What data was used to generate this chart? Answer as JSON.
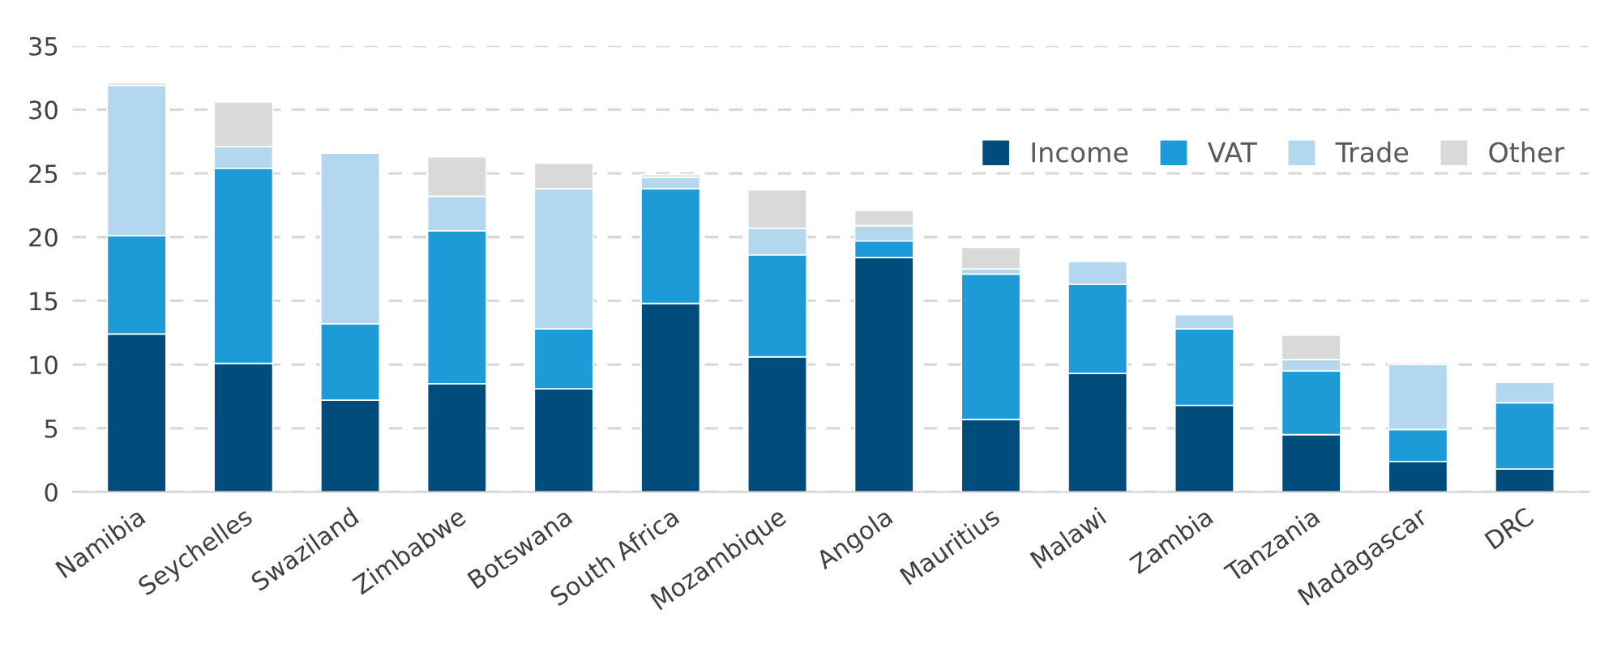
{
  "chart_data": {
    "type": "bar",
    "stacked": true,
    "categories": [
      "Namibia",
      "Seychelles",
      "Swaziland",
      "Zimbabwe",
      "Botswana",
      "South Africa",
      "Mozambique",
      "Angola",
      "Mauritius",
      "Malawi",
      "Zambia",
      "Tanzania",
      "Madagascar",
      "DRC"
    ],
    "series": [
      {
        "name": "Income",
        "color": "#004c7a",
        "values": [
          12.4,
          10.1,
          7.2,
          8.5,
          8.1,
          14.8,
          10.6,
          18.4,
          5.7,
          9.3,
          6.8,
          4.5,
          2.4,
          1.8
        ]
      },
      {
        "name": "VAT",
        "color": "#1c9bd7",
        "values": [
          7.7,
          15.3,
          6.0,
          12.0,
          4.7,
          9.0,
          8.0,
          1.3,
          11.4,
          7.0,
          6.0,
          5.0,
          2.5,
          5.2
        ]
      },
      {
        "name": "Trade",
        "color": "#b3d7ee",
        "values": [
          11.8,
          1.7,
          13.4,
          2.7,
          11.0,
          0.9,
          2.1,
          1.2,
          0.4,
          1.8,
          1.1,
          0.9,
          5.1,
          1.6
        ]
      },
      {
        "name": "Other",
        "color": "#d9d9d9",
        "values": [
          0.2,
          3.5,
          0.1,
          3.1,
          2.0,
          0.2,
          3.0,
          1.2,
          1.7,
          0.1,
          null,
          1.9,
          null,
          null
        ]
      }
    ],
    "ylim": [
      0,
      35
    ],
    "yticks": [
      0,
      5,
      10,
      15,
      20,
      25,
      30,
      35
    ],
    "grid": "y",
    "legend": "top right"
  }
}
